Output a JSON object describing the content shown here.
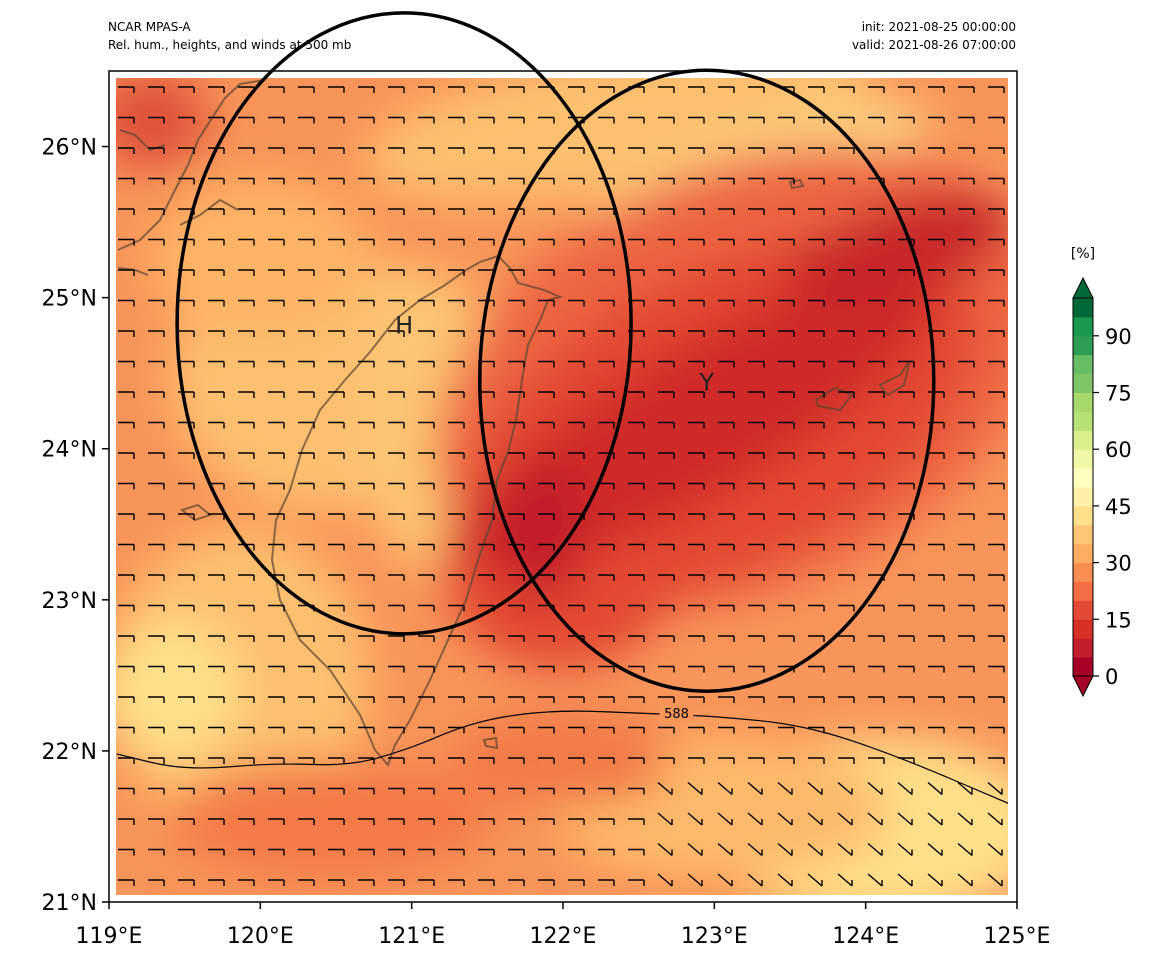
{
  "header": {
    "model": "NCAR MPAS-A",
    "product": "Rel. hum., heights, and winds at 500 mb",
    "init": "init: 2021-08-25 00:00:00",
    "valid": "valid: 2021-08-26 07:00:00"
  },
  "map": {
    "lon_range": [
      119,
      125
    ],
    "lat_range": [
      21,
      26.5
    ],
    "lon_ticks": [
      {
        "value": 119,
        "label": "119°E"
      },
      {
        "value": 120,
        "label": "120°E"
      },
      {
        "value": 121,
        "label": "121°E"
      },
      {
        "value": 122,
        "label": "122°E"
      },
      {
        "value": 123,
        "label": "123°E"
      },
      {
        "value": 124,
        "label": "124°E"
      },
      {
        "value": 125,
        "label": "125°E"
      }
    ],
    "lat_ticks": [
      {
        "value": 21,
        "label": "21°N"
      },
      {
        "value": 22,
        "label": "22°N"
      },
      {
        "value": 23,
        "label": "23°N"
      },
      {
        "value": 24,
        "label": "24°N"
      },
      {
        "value": 25,
        "label": "25°N"
      },
      {
        "value": 26,
        "label": "26°N"
      }
    ],
    "circles": [
      {
        "label": "H",
        "center_lon": 120.95,
        "center_lat": 24.83,
        "radius_deg": 1.5
      },
      {
        "label": "Y",
        "center_lon": 122.95,
        "center_lat": 24.45,
        "radius_deg": 1.5
      }
    ],
    "height_contour": {
      "value_label": "588",
      "points": [
        [
          119.05,
          21.98
        ],
        [
          119.5,
          21.87
        ],
        [
          120.1,
          21.92
        ],
        [
          120.6,
          21.9
        ],
        [
          121.0,
          22.02
        ],
        [
          121.3,
          22.15
        ],
        [
          121.6,
          22.23
        ],
        [
          122.0,
          22.27
        ],
        [
          122.5,
          22.25
        ],
        [
          123.0,
          22.23
        ],
        [
          123.6,
          22.17
        ],
        [
          124.2,
          21.97
        ],
        [
          124.95,
          21.65
        ]
      ]
    }
  },
  "colorbar": {
    "unit": "[%]",
    "ticks": [
      {
        "value": 0,
        "label": "0"
      },
      {
        "value": 15,
        "label": "15"
      },
      {
        "value": 30,
        "label": "30"
      },
      {
        "value": 45,
        "label": "45"
      },
      {
        "value": 60,
        "label": "60"
      },
      {
        "value": 75,
        "label": "75"
      },
      {
        "value": 90,
        "label": "90"
      }
    ],
    "range": [
      0,
      100
    ],
    "colors": [
      "#a50026",
      "#c21f2b",
      "#d73027",
      "#e34a33",
      "#f46d43",
      "#f88d52",
      "#fdae61",
      "#fdc574",
      "#fee08b",
      "#fff1a8",
      "#ffffbf",
      "#eff8a6",
      "#d9ef8b",
      "#b7e075",
      "#a6d96a",
      "#7fc566",
      "#66bd63",
      "#2f9e55",
      "#1a9850",
      "#006837"
    ]
  }
}
